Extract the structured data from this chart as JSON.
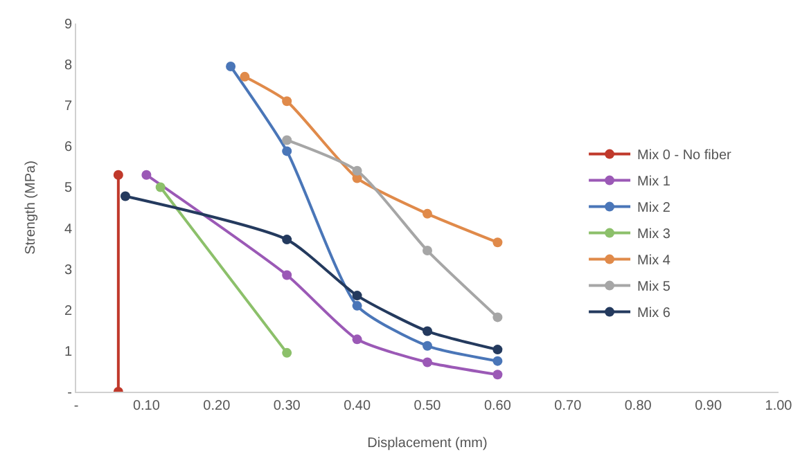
{
  "chart_data": {
    "type": "line",
    "xlabel": "Displacement (mm)",
    "ylabel": "Strength (MPa)",
    "xlim": [
      0,
      1
    ],
    "xticks": [
      {
        "value": 0,
        "label": "-"
      },
      {
        "value": 0.1,
        "label": "0.10"
      },
      {
        "value": 0.2,
        "label": "0.20"
      },
      {
        "value": 0.3,
        "label": "0.30"
      },
      {
        "value": 0.4,
        "label": "0.40"
      },
      {
        "value": 0.5,
        "label": "0.50"
      },
      {
        "value": 0.6,
        "label": "0.60"
      },
      {
        "value": 0.7,
        "label": "0.70"
      },
      {
        "value": 0.8,
        "label": "0.80"
      },
      {
        "value": 0.9,
        "label": "0.90"
      },
      {
        "value": 1,
        "label": "1.00"
      }
    ],
    "ylim": [
      0,
      9
    ],
    "yticks": [
      {
        "value": 0,
        "label": "-"
      },
      1,
      2,
      3,
      4,
      5,
      6,
      7,
      8,
      9
    ],
    "grid": false,
    "legend": "right",
    "marker": "circle",
    "line_style": "solid",
    "series": [
      {
        "name": "Mix 0 - No fiber",
        "color": "#c0392b",
        "x": [
          0.06,
          0.06
        ],
        "values": [
          5.3,
          0
        ]
      },
      {
        "name": "Mix 1",
        "color": "#9b59b6",
        "x": [
          0.1,
          0.3,
          0.4,
          0.5,
          0.6
        ],
        "values": [
          5.3,
          2.85,
          1.28,
          0.72,
          0.42
        ]
      },
      {
        "name": "Mix 2",
        "color": "#4a76b8",
        "x": [
          0.22,
          0.3,
          0.4,
          0.5,
          0.6
        ],
        "values": [
          7.95,
          5.88,
          2.1,
          1.12,
          0.75
        ]
      },
      {
        "name": "Mix 3",
        "color": "#8cc06a",
        "x": [
          0.12,
          0.3
        ],
        "values": [
          5.0,
          0.95
        ]
      },
      {
        "name": "Mix 4",
        "color": "#e08a4a",
        "x": [
          0.24,
          0.3,
          0.4,
          0.5,
          0.6
        ],
        "values": [
          7.7,
          7.1,
          5.22,
          4.35,
          3.65
        ]
      },
      {
        "name": "Mix 5",
        "color": "#a6a6a6",
        "x": [
          0.3,
          0.4,
          0.5,
          0.6
        ],
        "values": [
          6.15,
          5.4,
          3.45,
          1.82
        ]
      },
      {
        "name": "Mix 6",
        "color": "#243a5e",
        "x": [
          0.07,
          0.3,
          0.4,
          0.5,
          0.6
        ],
        "values": [
          4.78,
          3.72,
          2.35,
          1.48,
          1.03
        ]
      }
    ]
  }
}
